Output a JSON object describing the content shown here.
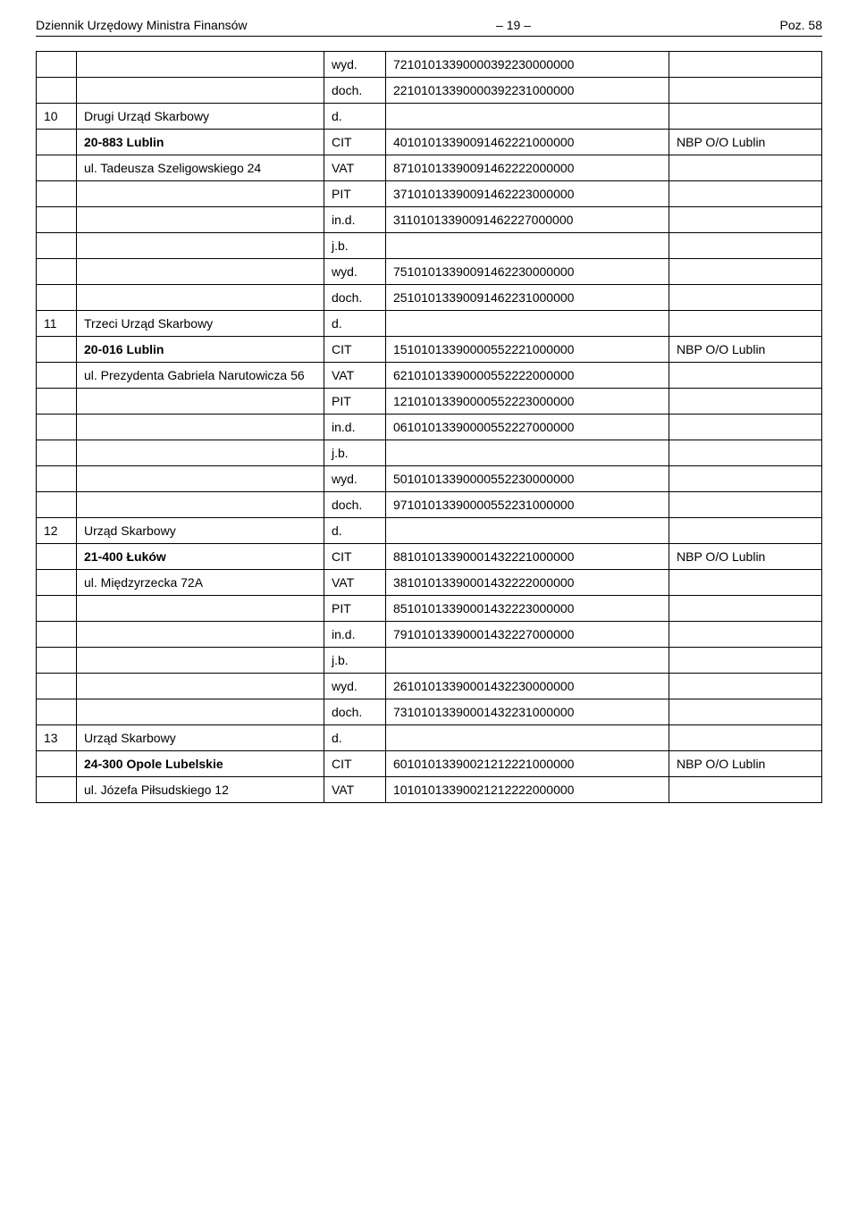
{
  "header": {
    "left": "Dziennik Urzędowy Ministra Finansów",
    "center": "– 19 –",
    "right": "Poz. 58"
  },
  "codes": {
    "wyd": "wyd.",
    "doch": "doch.",
    "d": "d.",
    "cit": "CIT",
    "vat": "VAT",
    "pit": "PIT",
    "ind": "in.d.",
    "jb": "j.b."
  },
  "sections": [
    {
      "pre_rows": [
        {
          "code": "wyd.",
          "num": "72101013390000392230000000"
        },
        {
          "code": "doch.",
          "num": "22101013390000392231000000"
        }
      ],
      "idx": "10",
      "title": "Drugi Urząd Skarbowy",
      "title_code": "d.",
      "cit": {
        "city": "20-883 Lublin",
        "num": "40101013390091462221000000",
        "bank": "NBP O/O Lublin"
      },
      "vat": {
        "addr": "ul. Tadeusza Szeligowskiego 24",
        "num": "87101013390091462222000000"
      },
      "rows": [
        {
          "code": "PIT",
          "num": "37101013390091462223000000"
        },
        {
          "code": "in.d.",
          "num": "31101013390091462227000000"
        },
        {
          "code": "j.b.",
          "num": ""
        },
        {
          "code": "wyd.",
          "num": "75101013390091462230000000"
        },
        {
          "code": "doch.",
          "num": "25101013390091462231000000"
        }
      ]
    },
    {
      "idx": "11",
      "title": "Trzeci Urząd Skarbowy",
      "title_code": "d.",
      "cit": {
        "city": "20-016 Lublin",
        "num": "15101013390000552221000000",
        "bank": "NBP O/O Lublin"
      },
      "vat": {
        "addr": "ul. Prezydenta Gabriela Narutowicza 56",
        "num": "62101013390000552222000000"
      },
      "rows": [
        {
          "code": "PIT",
          "num": "12101013390000552223000000"
        },
        {
          "code": "in.d.",
          "num": "06101013390000552227000000"
        },
        {
          "code": "j.b.",
          "num": ""
        },
        {
          "code": "wyd.",
          "num": "50101013390000552230000000"
        },
        {
          "code": "doch.",
          "num": "97101013390000552231000000"
        }
      ]
    },
    {
      "idx": "12",
      "title": "Urząd Skarbowy",
      "title_code": "d.",
      "cit": {
        "city": "21-400 Łuków",
        "num": "88101013390001432221000000",
        "bank": "NBP O/O Lublin"
      },
      "vat": {
        "addr": "ul. Międzyrzecka 72A",
        "num": "38101013390001432222000000"
      },
      "rows": [
        {
          "code": "PIT",
          "num": "85101013390001432223000000"
        },
        {
          "code": "in.d.",
          "num": "79101013390001432227000000"
        },
        {
          "code": "j.b.",
          "num": ""
        },
        {
          "code": "wyd.",
          "num": "26101013390001432230000000"
        },
        {
          "code": "doch.",
          "num": "73101013390001432231000000"
        }
      ]
    },
    {
      "idx": "13",
      "title": "Urząd Skarbowy",
      "title_code": "d.",
      "cit": {
        "city": "24-300 Opole Lubelskie",
        "num": "60101013390021212221000000",
        "bank": "NBP O/O Lublin"
      },
      "vat": {
        "addr": "ul. Józefa Piłsudskiego 12",
        "num": "10101013390021212222000000"
      },
      "rows": []
    }
  ]
}
